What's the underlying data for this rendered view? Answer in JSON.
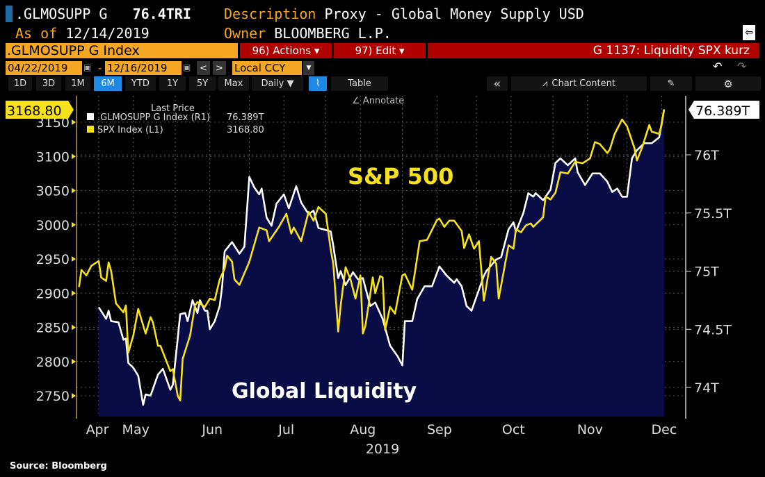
{
  "header": {
    "ticker": ".GLMOSUPP G",
    "value": "76.4TRI",
    "description_label": "Description",
    "description": "Proxy - Global Money Supply USD",
    "asof_label": "As of",
    "asof": "12/14/2019",
    "owner_label": "Owner",
    "owner": "BLOOMBERG L.P."
  },
  "toolbar": {
    "security": ".GLMOSUPP G Index",
    "actions": "96) Actions ▾",
    "edit": "97) Edit ▾",
    "chart_name": "G 1137: Liquidity SPX kurz",
    "start_date": "04/22/2019",
    "dash": "-",
    "end_date": "12/16/2019",
    "currency": "Local CCY",
    "prev": "<",
    "next": ">"
  },
  "tabs": [
    {
      "label": "1D"
    },
    {
      "label": "3D"
    },
    {
      "label": "1M"
    },
    {
      "label": "6M",
      "selected": true
    },
    {
      "label": "YTD"
    },
    {
      "label": "1Y"
    },
    {
      "label": "5Y"
    },
    {
      "label": "Max"
    },
    {
      "label": "Daily ▼"
    }
  ],
  "table_label": "Table",
  "collapse": "«",
  "chart_content": "Chart Content",
  "annotate": "Annotate",
  "source": "Source: Bloomberg",
  "colors": {
    "spx": "#f7e11b",
    "liquidity": "#ffffff",
    "fill": "#0a0c46",
    "accent_orange": "#f5a623",
    "red": "#b00000",
    "selected_tab": "#1e88e5"
  },
  "chart_data": {
    "type": "line",
    "xlabel": "2019",
    "x_ticks": [
      "Apr",
      "May",
      "Jun",
      "Jul",
      "Aug",
      "Sep",
      "Oct",
      "Nov",
      "Dec"
    ],
    "legend": {
      "title": "Last Price",
      "placement": "top-left",
      "entries": [
        {
          "name": ".GLMOSUPP G Index  (R1)",
          "value": "76.389T"
        },
        {
          "name": "SPX Index  (L1)",
          "value": "3168.80"
        }
      ]
    },
    "left_axis": {
      "ticks": [
        "2750",
        "2800",
        "2850",
        "2900",
        "2950",
        "3000",
        "3050",
        "3100",
        "3150"
      ],
      "range": [
        2720,
        3190
      ],
      "last_label": "3168.80"
    },
    "right_axis": {
      "ticks": [
        "74T",
        "74.5T",
        "75T",
        "75.5T",
        "76T"
      ],
      "range": [
        73.75,
        76.65
      ],
      "last_label": "76.389T"
    },
    "grid": true,
    "annotations": [
      "S&P 500",
      "Global Liquidity"
    ],
    "series": [
      {
        "name": "SPX Index",
        "axis": "left",
        "points": [
          [
            "2019-04-23",
            2909
          ],
          [
            "2019-04-24",
            2934
          ],
          [
            "2019-04-26",
            2926
          ],
          [
            "2019-04-28",
            2940
          ],
          [
            "2019-05-01",
            2947
          ],
          [
            "2019-05-02",
            2923
          ],
          [
            "2019-05-04",
            2918
          ],
          [
            "2019-05-05",
            2945
          ],
          [
            "2019-05-06",
            2933
          ],
          [
            "2019-05-08",
            2885
          ],
          [
            "2019-05-11",
            2872
          ],
          [
            "2019-05-12",
            2882
          ],
          [
            "2019-05-13",
            2813
          ],
          [
            "2019-05-15",
            2838
          ],
          [
            "2019-05-17",
            2877
          ],
          [
            "2019-05-20",
            2841
          ],
          [
            "2019-05-22",
            2865
          ],
          [
            "2019-05-23",
            2857
          ],
          [
            "2019-05-25",
            2823
          ],
          [
            "2019-05-26",
            2823
          ],
          [
            "2019-05-30",
            2786
          ],
          [
            "2019-05-31",
            2789
          ],
          [
            "2019-06-02",
            2750
          ],
          [
            "2019-06-03",
            2743
          ],
          [
            "2019-06-04",
            2804
          ],
          [
            "2019-06-07",
            2838
          ],
          [
            "2019-06-09",
            2882
          ],
          [
            "2019-06-10",
            2887
          ],
          [
            "2019-06-13",
            2880
          ],
          [
            "2019-06-15",
            2892
          ],
          [
            "2019-06-17",
            2890
          ],
          [
            "2019-06-19",
            2920
          ],
          [
            "2019-06-21",
            2936
          ],
          [
            "2019-06-22",
            2955
          ],
          [
            "2019-06-24",
            2946
          ],
          [
            "2019-06-25",
            2920
          ],
          [
            "2019-06-27",
            2912
          ],
          [
            "2019-07-01",
            2946
          ],
          [
            "2019-07-05",
            2996
          ],
          [
            "2019-07-08",
            2992
          ],
          [
            "2019-07-09",
            2976
          ],
          [
            "2019-07-13",
            2997
          ],
          [
            "2019-07-16",
            3016
          ],
          [
            "2019-07-18",
            2987
          ],
          [
            "2019-07-19",
            2996
          ],
          [
            "2019-07-22",
            2976
          ],
          [
            "2019-07-25",
            3019
          ],
          [
            "2019-07-27",
            3006
          ],
          [
            "2019-07-29",
            3026
          ],
          [
            "2019-08-01",
            3016
          ],
          [
            "2019-08-03",
            2963
          ],
          [
            "2019-08-04",
            2943
          ],
          [
            "2019-08-06",
            2844
          ],
          [
            "2019-08-07",
            2882
          ],
          [
            "2019-08-09",
            2938
          ],
          [
            "2019-08-11",
            2920
          ],
          [
            "2019-08-13",
            2892
          ],
          [
            "2019-08-15",
            2926
          ],
          [
            "2019-08-16",
            2841
          ],
          [
            "2019-08-17",
            2852
          ],
          [
            "2019-08-20",
            2923
          ],
          [
            "2019-08-21",
            2900
          ],
          [
            "2019-08-23",
            2925
          ],
          [
            "2019-08-24",
            2923
          ],
          [
            "2019-08-25",
            2846
          ],
          [
            "2019-08-27",
            2880
          ],
          [
            "2019-08-29",
            2870
          ],
          [
            "2019-09-01",
            2926
          ],
          [
            "2019-09-02",
            2928
          ],
          [
            "2019-09-05",
            2905
          ],
          [
            "2019-09-08",
            2976
          ],
          [
            "2019-09-11",
            2978
          ],
          [
            "2019-09-15",
            3007
          ],
          [
            "2019-09-16",
            3009
          ],
          [
            "2019-09-18",
            2997
          ],
          [
            "2019-09-20",
            3006
          ],
          [
            "2019-09-22",
            3006
          ],
          [
            "2019-09-25",
            2991
          ],
          [
            "2019-09-26",
            2966
          ],
          [
            "2019-09-28",
            2986
          ],
          [
            "2019-09-30",
            2965
          ],
          [
            "2019-10-02",
            2976
          ],
          [
            "2019-10-04",
            2889
          ],
          [
            "2019-10-07",
            2953
          ],
          [
            "2019-10-09",
            2943
          ],
          [
            "2019-10-10",
            2892
          ],
          [
            "2019-10-14",
            2970
          ],
          [
            "2019-10-16",
            2965
          ],
          [
            "2019-10-17",
            2994
          ],
          [
            "2019-10-19",
            2989
          ],
          [
            "2019-10-21",
            2999
          ],
          [
            "2019-10-23",
            3002
          ],
          [
            "2019-10-24",
            2997
          ],
          [
            "2019-10-28",
            3011
          ],
          [
            "2019-10-29",
            3041
          ],
          [
            "2019-10-31",
            3037
          ],
          [
            "2019-11-02",
            3047
          ],
          [
            "2019-11-04",
            3077
          ],
          [
            "2019-11-07",
            3075
          ],
          [
            "2019-11-10",
            3092
          ],
          [
            "2019-11-13",
            3090
          ],
          [
            "2019-11-16",
            3097
          ],
          [
            "2019-11-18",
            3121
          ],
          [
            "2019-11-20",
            3118
          ],
          [
            "2019-11-23",
            3105
          ],
          [
            "2019-11-24",
            3110
          ],
          [
            "2019-11-26",
            3133
          ],
          [
            "2019-11-29",
            3154
          ],
          [
            "2019-12-01",
            3144
          ],
          [
            "2019-12-04",
            3112
          ],
          [
            "2019-12-05",
            3094
          ],
          [
            "2019-12-07",
            3112
          ],
          [
            "2019-12-10",
            3146
          ],
          [
            "2019-12-11",
            3136
          ],
          [
            "2019-12-14",
            3133
          ],
          [
            "2019-12-15",
            3146
          ],
          [
            "2019-12-16",
            3168.8
          ]
        ]
      },
      {
        "name": ".GLMOSUPP G Index",
        "axis": "right",
        "points": [
          [
            "2019-05-01",
            74.69
          ],
          [
            "2019-05-04",
            74.59
          ],
          [
            "2019-05-05",
            74.66
          ],
          [
            "2019-05-06",
            74.57
          ],
          [
            "2019-05-09",
            74.56
          ],
          [
            "2019-05-11",
            74.41
          ],
          [
            "2019-05-12",
            74.42
          ],
          [
            "2019-05-13",
            74.21
          ],
          [
            "2019-05-15",
            74.17
          ],
          [
            "2019-05-17",
            74.1
          ],
          [
            "2019-05-19",
            73.85
          ],
          [
            "2019-05-20",
            73.94
          ],
          [
            "2019-05-22",
            73.93
          ],
          [
            "2019-05-25",
            74.11
          ],
          [
            "2019-05-27",
            74.16
          ],
          [
            "2019-05-30",
            73.98
          ],
          [
            "2019-05-31",
            74.02
          ],
          [
            "2019-06-02",
            74.42
          ],
          [
            "2019-06-03",
            74.63
          ],
          [
            "2019-06-05",
            74.64
          ],
          [
            "2019-06-06",
            74.57
          ],
          [
            "2019-06-08",
            74.75
          ],
          [
            "2019-06-10",
            74.64
          ],
          [
            "2019-06-11",
            74.75
          ],
          [
            "2019-06-13",
            74.66
          ],
          [
            "2019-06-14",
            74.66
          ],
          [
            "2019-06-15",
            74.5
          ],
          [
            "2019-06-17",
            74.57
          ],
          [
            "2019-06-19",
            74.7
          ],
          [
            "2019-06-20",
            74.87
          ],
          [
            "2019-06-21",
            75.17
          ],
          [
            "2019-06-24",
            75.25
          ],
          [
            "2019-06-27",
            75.15
          ],
          [
            "2019-06-29",
            75.21
          ],
          [
            "2019-07-01",
            75.81
          ],
          [
            "2019-07-03",
            75.72
          ],
          [
            "2019-07-05",
            75.66
          ],
          [
            "2019-07-06",
            75.71
          ],
          [
            "2019-07-08",
            75.46
          ],
          [
            "2019-07-10",
            75.39
          ],
          [
            "2019-07-12",
            75.58
          ],
          [
            "2019-07-15",
            75.66
          ],
          [
            "2019-07-17",
            75.54
          ],
          [
            "2019-07-20",
            75.73
          ],
          [
            "2019-07-22",
            75.59
          ],
          [
            "2019-07-25",
            75.49
          ],
          [
            "2019-07-27",
            75.52
          ],
          [
            "2019-07-29",
            75.37
          ],
          [
            "2019-07-31",
            75.36
          ],
          [
            "2019-08-03",
            75.34
          ],
          [
            "2019-08-04",
            75.22
          ],
          [
            "2019-08-06",
            74.94
          ],
          [
            "2019-08-07",
            75.0
          ],
          [
            "2019-08-09",
            74.88
          ],
          [
            "2019-08-12",
            74.99
          ],
          [
            "2019-08-14",
            74.93
          ],
          [
            "2019-08-16",
            74.94
          ],
          [
            "2019-08-19",
            74.7
          ],
          [
            "2019-08-21",
            74.73
          ],
          [
            "2019-08-24",
            74.59
          ],
          [
            "2019-08-27",
            74.36
          ],
          [
            "2019-08-30",
            74.27
          ],
          [
            "2019-09-01",
            74.19
          ],
          [
            "2019-09-02",
            74.57
          ],
          [
            "2019-09-05",
            74.57
          ],
          [
            "2019-09-07",
            74.76
          ],
          [
            "2019-09-10",
            74.87
          ],
          [
            "2019-09-13",
            74.87
          ],
          [
            "2019-09-16",
            75.04
          ],
          [
            "2019-09-19",
            74.96
          ],
          [
            "2019-09-22",
            74.9
          ],
          [
            "2019-09-23",
            74.93
          ],
          [
            "2019-09-25",
            74.87
          ],
          [
            "2019-09-27",
            74.7
          ],
          [
            "2019-09-29",
            74.66
          ],
          [
            "2019-09-30",
            74.72
          ],
          [
            "2019-10-04",
            74.96
          ],
          [
            "2019-10-05",
            75.0
          ],
          [
            "2019-10-09",
            75.1
          ],
          [
            "2019-10-11",
            75.12
          ],
          [
            "2019-10-14",
            75.36
          ],
          [
            "2019-10-16",
            75.42
          ],
          [
            "2019-10-17",
            75.34
          ],
          [
            "2019-10-20",
            75.5
          ],
          [
            "2019-10-22",
            75.67
          ],
          [
            "2019-10-24",
            75.64
          ],
          [
            "2019-10-25",
            75.67
          ],
          [
            "2019-10-28",
            75.61
          ],
          [
            "2019-10-31",
            75.7
          ],
          [
            "2019-11-02",
            75.93
          ],
          [
            "2019-11-04",
            75.97
          ],
          [
            "2019-11-07",
            75.91
          ],
          [
            "2019-11-10",
            75.97
          ],
          [
            "2019-11-11",
            75.85
          ],
          [
            "2019-11-14",
            75.74
          ],
          [
            "2019-11-17",
            75.84
          ],
          [
            "2019-11-20",
            75.84
          ],
          [
            "2019-11-23",
            75.77
          ],
          [
            "2019-11-25",
            75.68
          ],
          [
            "2019-11-27",
            75.71
          ],
          [
            "2019-11-29",
            75.64
          ],
          [
            "2019-12-01",
            75.64
          ],
          [
            "2019-12-03",
            75.97
          ],
          [
            "2019-12-05",
            76.04
          ],
          [
            "2019-12-08",
            76.1
          ],
          [
            "2019-12-11",
            76.1
          ],
          [
            "2019-12-14",
            76.15
          ],
          [
            "2019-12-16",
            76.389
          ]
        ]
      }
    ]
  }
}
